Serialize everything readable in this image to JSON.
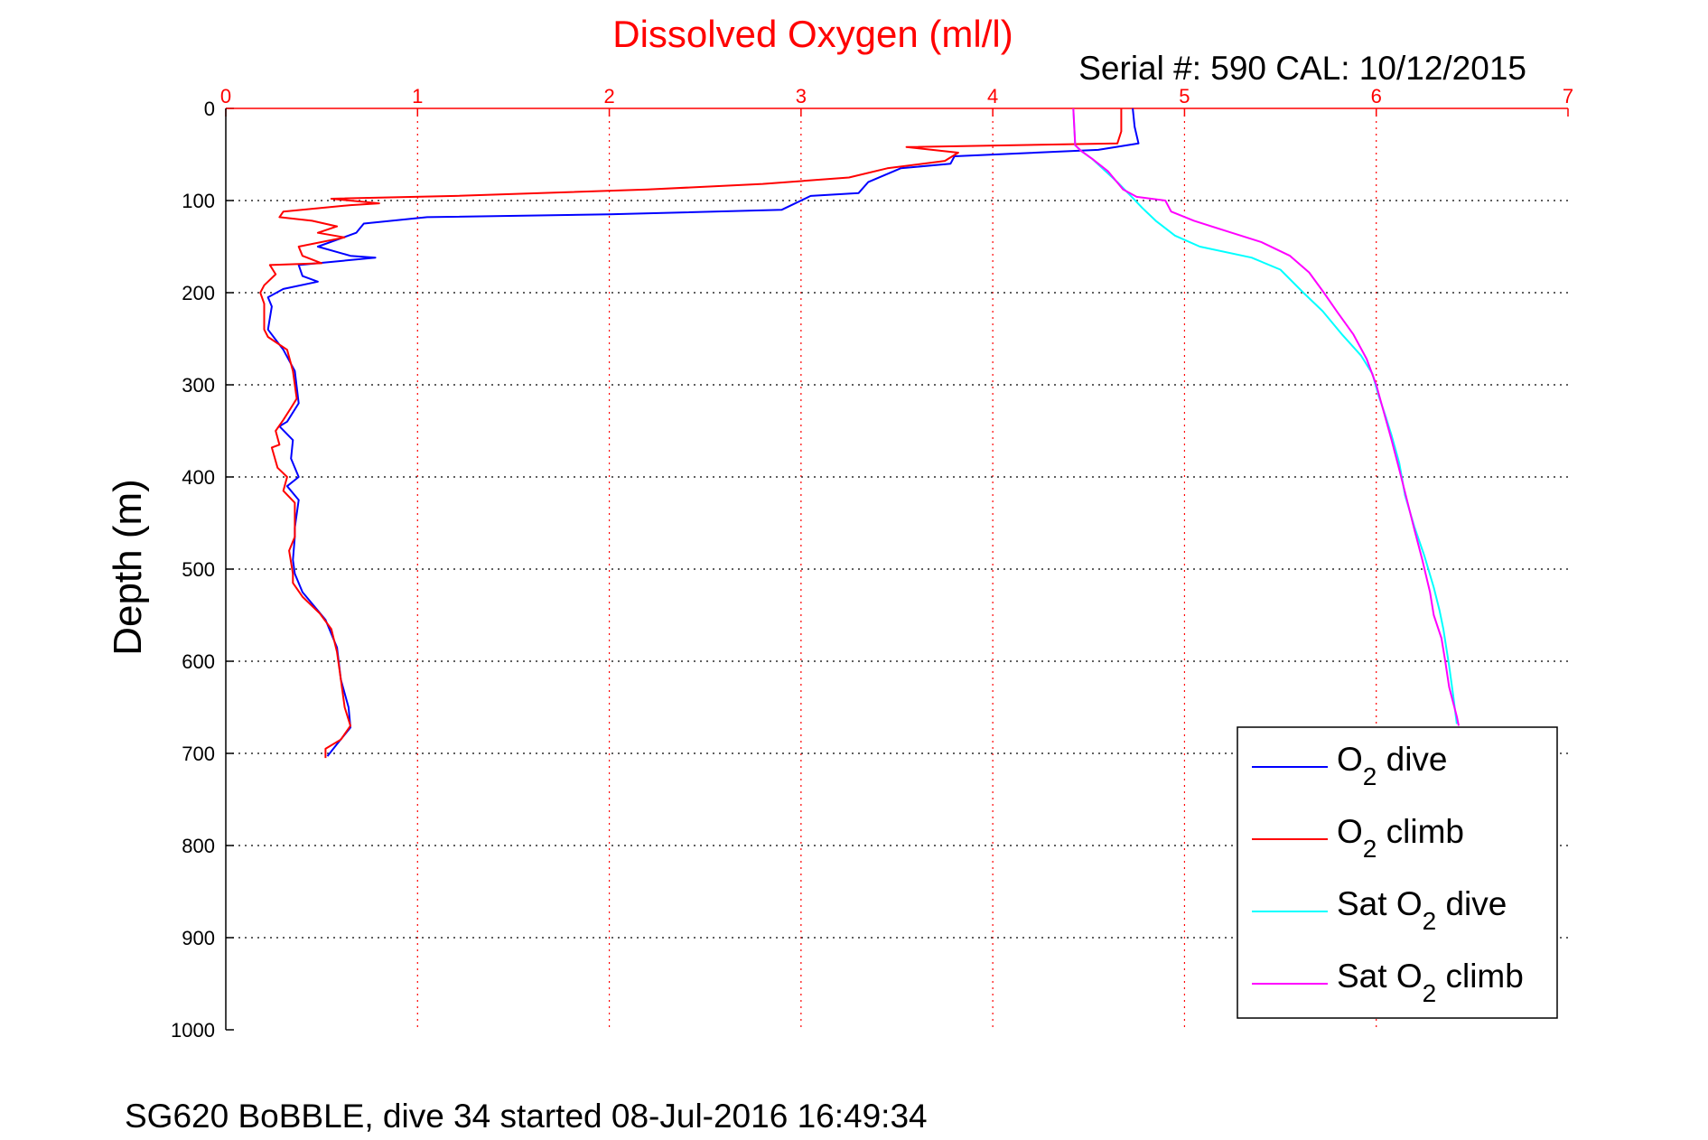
{
  "chart_data": {
    "type": "line",
    "title": "Dissolved Oxygen (ml/l)",
    "subtitle": "Serial #: 590  CAL: 10/12/2015",
    "ylabel": "Depth (m)",
    "footer": "SG620 BoBBLE, dive 34 started 08-Jul-2016 16:49:34",
    "xlim": [
      0,
      7
    ],
    "ylim": [
      0,
      1000
    ],
    "y_reversed": true,
    "x_axis_position": "top",
    "x_ticks": [
      "0",
      "1",
      "2",
      "3",
      "4",
      "5",
      "6",
      "7"
    ],
    "y_ticks": [
      "0",
      "100",
      "200",
      "300",
      "400",
      "500",
      "600",
      "700",
      "800",
      "900",
      "1000"
    ],
    "grid": true,
    "legend_position": "bottom-right",
    "colors": {
      "title": "#ff0000",
      "xaxis": "#ff0000",
      "grid_x": "#ff0000",
      "grid_y": "#000000"
    },
    "series": [
      {
        "name_main": "O",
        "name_sub": "2",
        "name_rest": " dive",
        "color": "#0000ff",
        "points": [
          [
            4.73,
            0
          ],
          [
            4.74,
            20
          ],
          [
            4.76,
            38
          ],
          [
            4.55,
            45
          ],
          [
            3.8,
            52
          ],
          [
            3.78,
            60
          ],
          [
            3.52,
            65
          ],
          [
            3.35,
            80
          ],
          [
            3.3,
            92
          ],
          [
            3.05,
            95
          ],
          [
            2.9,
            110
          ],
          [
            2.0,
            115
          ],
          [
            1.05,
            118
          ],
          [
            0.72,
            125
          ],
          [
            0.68,
            135
          ],
          [
            0.48,
            150
          ],
          [
            0.65,
            160
          ],
          [
            0.78,
            162
          ],
          [
            0.38,
            170
          ],
          [
            0.4,
            182
          ],
          [
            0.48,
            188
          ],
          [
            0.3,
            196
          ],
          [
            0.22,
            205
          ],
          [
            0.24,
            215
          ],
          [
            0.22,
            240
          ],
          [
            0.3,
            262
          ],
          [
            0.36,
            285
          ],
          [
            0.38,
            320
          ],
          [
            0.32,
            340
          ],
          [
            0.28,
            345
          ],
          [
            0.35,
            360
          ],
          [
            0.34,
            380
          ],
          [
            0.38,
            400
          ],
          [
            0.32,
            410
          ],
          [
            0.38,
            425
          ],
          [
            0.36,
            455
          ],
          [
            0.36,
            465
          ],
          [
            0.35,
            490
          ],
          [
            0.36,
            505
          ],
          [
            0.4,
            525
          ],
          [
            0.48,
            545
          ],
          [
            0.52,
            555
          ],
          [
            0.58,
            585
          ],
          [
            0.6,
            620
          ],
          [
            0.64,
            650
          ],
          [
            0.65,
            672
          ],
          [
            0.58,
            690
          ],
          [
            0.53,
            703
          ]
        ]
      },
      {
        "name_main": "O",
        "name_sub": "2",
        "name_rest": " climb",
        "color": "#ff0000",
        "points": [
          [
            4.67,
            0
          ],
          [
            4.67,
            25
          ],
          [
            4.65,
            38
          ],
          [
            3.55,
            42
          ],
          [
            3.82,
            48
          ],
          [
            3.75,
            57
          ],
          [
            3.45,
            65
          ],
          [
            3.25,
            75
          ],
          [
            2.8,
            82
          ],
          [
            2.2,
            88
          ],
          [
            1.2,
            95
          ],
          [
            0.55,
            98
          ],
          [
            0.8,
            103
          ],
          [
            0.65,
            105
          ],
          [
            0.3,
            112
          ],
          [
            0.28,
            118
          ],
          [
            0.45,
            122
          ],
          [
            0.58,
            128
          ],
          [
            0.48,
            135
          ],
          [
            0.62,
            140
          ],
          [
            0.38,
            150
          ],
          [
            0.4,
            160
          ],
          [
            0.5,
            168
          ],
          [
            0.23,
            170
          ],
          [
            0.26,
            180
          ],
          [
            0.2,
            192
          ],
          [
            0.18,
            200
          ],
          [
            0.2,
            212
          ],
          [
            0.2,
            240
          ],
          [
            0.22,
            248
          ],
          [
            0.32,
            262
          ],
          [
            0.35,
            285
          ],
          [
            0.37,
            315
          ],
          [
            0.34,
            325
          ],
          [
            0.3,
            338
          ],
          [
            0.26,
            350
          ],
          [
            0.28,
            365
          ],
          [
            0.24,
            368
          ],
          [
            0.27,
            390
          ],
          [
            0.32,
            400
          ],
          [
            0.3,
            415
          ],
          [
            0.36,
            428
          ],
          [
            0.36,
            455
          ],
          [
            0.36,
            465
          ],
          [
            0.33,
            480
          ],
          [
            0.35,
            505
          ],
          [
            0.35,
            515
          ],
          [
            0.4,
            530
          ],
          [
            0.49,
            548
          ],
          [
            0.55,
            565
          ],
          [
            0.58,
            590
          ],
          [
            0.6,
            620
          ],
          [
            0.62,
            650
          ],
          [
            0.65,
            670
          ],
          [
            0.6,
            685
          ],
          [
            0.52,
            695
          ],
          [
            0.52,
            705
          ]
        ]
      },
      {
        "name_main": "Sat O",
        "name_sub": "2",
        "name_rest": " dive",
        "color": "#00ffff",
        "points": [
          [
            4.42,
            0
          ],
          [
            4.43,
            40
          ],
          [
            4.46,
            46
          ],
          [
            4.52,
            55
          ],
          [
            4.65,
            80
          ],
          [
            4.72,
            95
          ],
          [
            4.78,
            108
          ],
          [
            4.85,
            122
          ],
          [
            4.95,
            138
          ],
          [
            5.08,
            150
          ],
          [
            5.35,
            162
          ],
          [
            5.5,
            175
          ],
          [
            5.62,
            200
          ],
          [
            5.72,
            220
          ],
          [
            5.82,
            245
          ],
          [
            5.92,
            268
          ],
          [
            5.98,
            288
          ],
          [
            6.01,
            310
          ],
          [
            6.05,
            335
          ],
          [
            6.08,
            355
          ],
          [
            6.12,
            385
          ],
          [
            6.15,
            420
          ],
          [
            6.2,
            455
          ],
          [
            6.25,
            485
          ],
          [
            6.3,
            520
          ],
          [
            6.33,
            545
          ],
          [
            6.35,
            565
          ],
          [
            6.38,
            605
          ],
          [
            6.4,
            635
          ],
          [
            6.42,
            668
          ]
        ]
      },
      {
        "name_main": "Sat O",
        "name_sub": "2",
        "name_rest": " climb",
        "color": "#ff00ff",
        "points": [
          [
            4.42,
            0
          ],
          [
            4.43,
            40
          ],
          [
            4.46,
            46
          ],
          [
            4.52,
            55
          ],
          [
            4.6,
            68
          ],
          [
            4.68,
            88
          ],
          [
            4.75,
            96
          ],
          [
            4.9,
            100
          ],
          [
            4.93,
            112
          ],
          [
            5.05,
            122
          ],
          [
            5.2,
            132
          ],
          [
            5.4,
            145
          ],
          [
            5.55,
            160
          ],
          [
            5.65,
            178
          ],
          [
            5.72,
            198
          ],
          [
            5.8,
            222
          ],
          [
            5.88,
            245
          ],
          [
            5.95,
            272
          ],
          [
            6.0,
            300
          ],
          [
            6.04,
            330
          ],
          [
            6.08,
            360
          ],
          [
            6.12,
            392
          ],
          [
            6.16,
            425
          ],
          [
            6.2,
            458
          ],
          [
            6.24,
            490
          ],
          [
            6.28,
            525
          ],
          [
            6.3,
            550
          ],
          [
            6.34,
            575
          ],
          [
            6.36,
            600
          ],
          [
            6.38,
            628
          ],
          [
            6.42,
            660
          ],
          [
            6.43,
            670
          ]
        ]
      }
    ]
  }
}
